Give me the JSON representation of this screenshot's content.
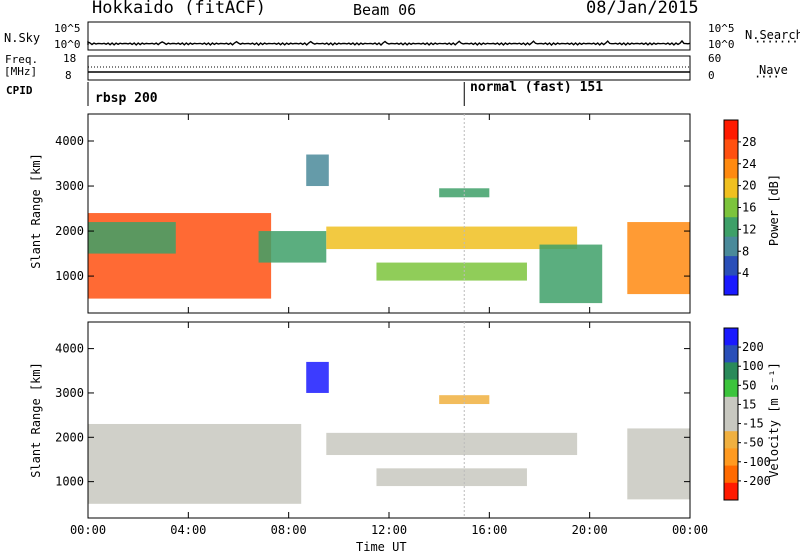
{
  "header": {
    "radar": "Hokkaido (fitACF)",
    "beam": "Beam 06",
    "date": "08/Jan/2015"
  },
  "top_panel": {
    "left_label": "N.Sky",
    "right_label": "N.Search",
    "left_ticks": [
      "10^5",
      "10^0"
    ],
    "right_ticks": [
      "10^5",
      "10^0"
    ],
    "freq_label_1": "Freq.",
    "freq_label_2": "[MHz]",
    "freq_ticks": [
      "18",
      "8"
    ],
    "nave_label": "Nave",
    "nave_ticks": [
      "60",
      "0"
    ],
    "cpid_label": "CPID",
    "cpid_1": "rbsp 200",
    "cpid_2": "normal (fast) 151"
  },
  "x_axis": {
    "label": "Time UT",
    "ticks": [
      "00:00",
      "04:00",
      "08:00",
      "12:00",
      "16:00",
      "20:00",
      "00:00"
    ]
  },
  "y_axis": {
    "label": "Slant Range [km]",
    "ticks": [
      "4000",
      "3000",
      "2000",
      "1000"
    ]
  },
  "power_colorbar": {
    "label": "Power [dB]",
    "ticks": [
      "28",
      "24",
      "20",
      "16",
      "12",
      "8",
      "4"
    ]
  },
  "velocity_colorbar": {
    "label": "Velocity [m s⁻¹]",
    "ticks": [
      "200",
      "100",
      "50",
      "15",
      "-15",
      "-50",
      "-100",
      "-200"
    ]
  },
  "chart_data": [
    {
      "type": "heatmap",
      "title": "Power",
      "xlabel": "Time UT",
      "ylabel": "Slant Range [km]",
      "xlim": [
        "00:00",
        "24:00"
      ],
      "ylim": [
        180,
        4600
      ],
      "colorbar": {
        "label": "Power [dB]",
        "range": [
          0,
          32
        ],
        "colors": [
          "#1a1aff",
          "#2a4fb8",
          "#4a8a9a",
          "#3ea068",
          "#7cc43c",
          "#f0c020",
          "#ff8a10",
          "#ff5010",
          "#ff1a00"
        ]
      },
      "echo_regions": [
        {
          "t0": 0.0,
          "t1": 7.3,
          "r0": 500,
          "r1": 2400,
          "db": 26
        },
        {
          "t0": 0.0,
          "t1": 3.5,
          "r0": 1500,
          "r1": 2200,
          "db": 14
        },
        {
          "t0": 6.8,
          "t1": 9.5,
          "r0": 1300,
          "r1": 2000,
          "db": 12
        },
        {
          "t0": 8.7,
          "t1": 9.6,
          "r0": 3000,
          "r1": 3700,
          "db": 8
        },
        {
          "t0": 9.5,
          "t1": 19.5,
          "r0": 1600,
          "r1": 2100,
          "db": 18
        },
        {
          "t0": 11.5,
          "t1": 17.5,
          "r0": 900,
          "r1": 1300,
          "db": 16
        },
        {
          "t0": 14.0,
          "t1": 16.0,
          "r0": 2750,
          "r1": 2950,
          "db": 12
        },
        {
          "t0": 18.0,
          "t1": 20.5,
          "r0": 400,
          "r1": 1700,
          "db": 14
        },
        {
          "t0": 21.5,
          "t1": 24.0,
          "r0": 600,
          "r1": 2200,
          "db": 24
        }
      ]
    },
    {
      "type": "heatmap",
      "title": "Velocity",
      "xlabel": "Time UT",
      "ylabel": "Slant Range [km]",
      "xlim": [
        "00:00",
        "24:00"
      ],
      "ylim": [
        180,
        4600
      ],
      "colorbar": {
        "label": "Velocity [m s⁻¹]",
        "range": [
          -250,
          250
        ],
        "colors": [
          "#ff1a00",
          "#ff6a00",
          "#ff9a20",
          "#f0b040",
          "#c8c8c0",
          "#c8c8c0",
          "#3cc43c",
          "#2a8a5a",
          "#2a4fb8",
          "#1a1aff"
        ]
      },
      "echo_regions": [
        {
          "t0": 0.0,
          "t1": 8.5,
          "r0": 500,
          "r1": 2300,
          "v": 0
        },
        {
          "t0": 8.7,
          "t1": 9.6,
          "r0": 3000,
          "r1": 3700,
          "v": 220
        },
        {
          "t0": 9.5,
          "t1": 19.5,
          "r0": 1600,
          "r1": 2100,
          "v": 40
        },
        {
          "t0": 11.5,
          "t1": 17.5,
          "r0": 900,
          "r1": 1300,
          "v": 0
        },
        {
          "t0": 14.0,
          "t1": 16.0,
          "r0": 2750,
          "r1": 2950,
          "v": -60
        },
        {
          "t0": 21.5,
          "t1": 24.0,
          "r0": 600,
          "r1": 2200,
          "v": 40
        }
      ]
    }
  ]
}
